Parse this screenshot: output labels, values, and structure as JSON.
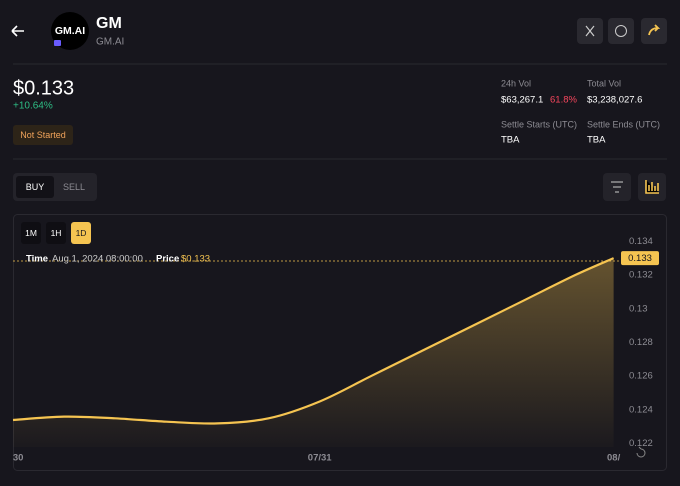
{
  "header": {
    "logo_text": "GM.AI",
    "title": "GM",
    "subtitle": "GM.AI"
  },
  "price": {
    "value": "$0.133",
    "change": "+10.64%",
    "status": "Not Started"
  },
  "stats": [
    {
      "label": "24h Vol",
      "value": "$63,267.1",
      "change": "61.8%"
    },
    {
      "label": "Total Vol",
      "value": "$3,238,027.6"
    },
    {
      "label": "Settle Starts (UTC)",
      "value": "TBA"
    },
    {
      "label": "Settle Ends (UTC)",
      "value": "TBA"
    }
  ],
  "tabs": [
    "BUY",
    "SELL"
  ],
  "intervals": [
    "1M",
    "1H",
    "1D"
  ],
  "tooltip": {
    "time_label": "Time",
    "time": "Aug 1, 2024 08:00:00",
    "price_label": "Price",
    "price": "$0.133"
  },
  "chart_data": {
    "type": "area",
    "x": [
      0,
      4,
      8,
      12,
      16,
      20,
      24,
      28,
      32,
      36,
      40,
      44,
      47
    ],
    "series": [
      {
        "color": "#f5c451",
        "values": [
          0.1234,
          0.1236,
          0.1235,
          0.1233,
          0.1232,
          0.1235,
          0.1245,
          0.126,
          0.1275,
          0.129,
          0.1305,
          0.132,
          0.133
        ]
      }
    ],
    "xlim": [
      0,
      47.5
    ],
    "xticks": [
      {
        "value": 0.4,
        "label": "30"
      },
      {
        "value": 24,
        "label": "07/31"
      },
      {
        "value": 47,
        "label": "08/"
      }
    ],
    "ylim": [
      0.1218,
      0.1355
    ],
    "yticks": [
      0.122,
      0.124,
      0.126,
      0.128,
      0.13,
      0.132,
      0.134
    ],
    "grid": false
  }
}
